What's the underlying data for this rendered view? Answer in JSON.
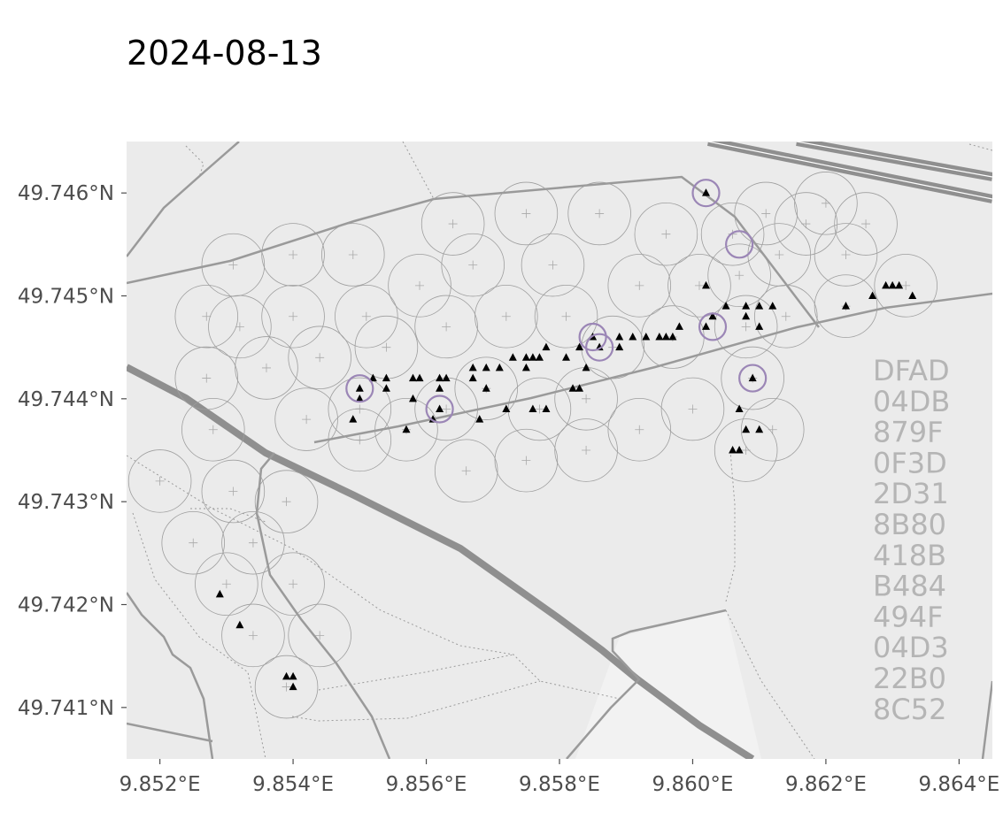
{
  "title": "2024-08-13",
  "map": {
    "x_range": [
      9.8515,
      9.8645
    ],
    "y_range": [
      49.7405,
      49.7465
    ],
    "background_color": "#ebebeb",
    "x_ticks": [
      {
        "value": 9.852,
        "label": "9.852°E"
      },
      {
        "value": 9.854,
        "label": "9.854°E"
      },
      {
        "value": 9.856,
        "label": "9.856°E"
      },
      {
        "value": 9.858,
        "label": "9.858°E"
      },
      {
        "value": 9.86,
        "label": "9.860°E"
      },
      {
        "value": 9.862,
        "label": "9.862°E"
      },
      {
        "value": 9.864,
        "label": "9.864°E"
      }
    ],
    "y_ticks": [
      {
        "value": 49.746,
        "label": "49.746°N"
      },
      {
        "value": 49.745,
        "label": "49.745°N"
      },
      {
        "value": 49.744,
        "label": "49.744°N"
      },
      {
        "value": 49.743,
        "label": "49.743°N"
      },
      {
        "value": 49.742,
        "label": "49.742°N"
      },
      {
        "value": 49.741,
        "label": "49.741°N"
      }
    ]
  },
  "side_codes": [
    "DFAD",
    "04DB",
    "879F",
    "0F3D",
    "2D31",
    "8B80",
    "418B",
    "B484",
    "494F",
    "04D3",
    "22B0",
    "8C52"
  ],
  "chart_data": {
    "type": "scatter",
    "coverage_circles": {
      "radius_deg_lon": 0.00047,
      "color": "#9e9e9e",
      "centers": [
        [
          9.8531,
          49.7453
        ],
        [
          9.854,
          49.7454
        ],
        [
          9.8549,
          49.7454
        ],
        [
          9.8564,
          49.7457
        ],
        [
          9.8575,
          49.7458
        ],
        [
          9.8586,
          49.7458
        ],
        [
          9.8596,
          49.7456
        ],
        [
          9.8606,
          49.7456
        ],
        [
          9.8617,
          49.7457
        ],
        [
          9.8626,
          49.7457
        ],
        [
          9.8611,
          49.7458
        ],
        [
          9.862,
          49.7459
        ],
        [
          9.8527,
          49.7448
        ],
        [
          9.8532,
          49.7447
        ],
        [
          9.854,
          49.7448
        ],
        [
          9.8551,
          49.7448
        ],
        [
          9.8559,
          49.7451
        ],
        [
          9.8567,
          49.7453
        ],
        [
          9.8579,
          49.7453
        ],
        [
          9.8592,
          49.7451
        ],
        [
          9.8601,
          49.7451
        ],
        [
          9.8607,
          49.7452
        ],
        [
          9.8613,
          49.7454
        ],
        [
          9.8623,
          49.7454
        ],
        [
          9.8527,
          49.7442
        ],
        [
          9.8536,
          49.7443
        ],
        [
          9.8544,
          49.7444
        ],
        [
          9.8554,
          49.7445
        ],
        [
          9.8563,
          49.7447
        ],
        [
          9.8572,
          49.7448
        ],
        [
          9.8581,
          49.7448
        ],
        [
          9.8588,
          49.7445
        ],
        [
          9.8597,
          49.7446
        ],
        [
          9.8608,
          49.7447
        ],
        [
          9.8614,
          49.7448
        ],
        [
          9.8623,
          49.7449
        ],
        [
          9.8632,
          49.7451
        ],
        [
          9.8528,
          49.7437
        ],
        [
          9.8542,
          49.7438
        ],
        [
          9.855,
          49.7439
        ],
        [
          9.8557,
          49.7437
        ],
        [
          9.8563,
          49.7439
        ],
        [
          9.8569,
          49.7441
        ],
        [
          9.8577,
          49.7439
        ],
        [
          9.8584,
          49.744
        ],
        [
          9.86,
          49.7439
        ],
        [
          9.8609,
          49.7442
        ],
        [
          9.8612,
          49.7437
        ],
        [
          9.852,
          49.7432
        ],
        [
          9.8531,
          49.7431
        ],
        [
          9.8539,
          49.743
        ],
        [
          9.855,
          49.7436
        ],
        [
          9.8566,
          49.7433
        ],
        [
          9.8575,
          49.7434
        ],
        [
          9.8584,
          49.7435
        ],
        [
          9.8592,
          49.7437
        ],
        [
          9.8608,
          49.7435
        ],
        [
          9.8525,
          49.7426
        ],
        [
          9.8534,
          49.7426
        ],
        [
          9.854,
          49.7422
        ],
        [
          9.853,
          49.7422
        ],
        [
          9.8534,
          49.7417
        ],
        [
          9.8544,
          49.7417
        ],
        [
          9.8539,
          49.7412
        ]
      ]
    },
    "detections": {
      "marker": "triangle",
      "color": "#000000",
      "points": [
        [
          9.8529,
          49.7421
        ],
        [
          9.8532,
          49.7418
        ],
        [
          9.8539,
          49.7413
        ],
        [
          9.854,
          49.7413
        ],
        [
          9.854,
          49.7412
        ],
        [
          9.8549,
          49.7438
        ],
        [
          9.855,
          49.744
        ],
        [
          9.855,
          49.7441
        ],
        [
          9.8552,
          49.7442
        ],
        [
          9.8554,
          49.7442
        ],
        [
          9.8554,
          49.7441
        ],
        [
          9.8557,
          49.7437
        ],
        [
          9.8558,
          49.744
        ],
        [
          9.8558,
          49.7442
        ],
        [
          9.8559,
          49.7442
        ],
        [
          9.8561,
          49.7438
        ],
        [
          9.8562,
          49.7439
        ],
        [
          9.8562,
          49.7441
        ],
        [
          9.8562,
          49.7442
        ],
        [
          9.8563,
          49.7442
        ],
        [
          9.8567,
          49.7442
        ],
        [
          9.8567,
          49.7443
        ],
        [
          9.8568,
          49.7438
        ],
        [
          9.8569,
          49.7441
        ],
        [
          9.8569,
          49.7443
        ],
        [
          9.8571,
          49.7443
        ],
        [
          9.8572,
          49.7439
        ],
        [
          9.8573,
          49.7444
        ],
        [
          9.8575,
          49.7443
        ],
        [
          9.8575,
          49.7444
        ],
        [
          9.8576,
          49.7444
        ],
        [
          9.8576,
          49.7439
        ],
        [
          9.8577,
          49.7444
        ],
        [
          9.8578,
          49.7439
        ],
        [
          9.8578,
          49.7445
        ],
        [
          9.8581,
          49.7444
        ],
        [
          9.8582,
          49.7441
        ],
        [
          9.8583,
          49.7445
        ],
        [
          9.8583,
          49.7441
        ],
        [
          9.8584,
          49.7443
        ],
        [
          9.8585,
          49.7446
        ],
        [
          9.8586,
          49.7445
        ],
        [
          9.8589,
          49.7445
        ],
        [
          9.8589,
          49.7446
        ],
        [
          9.8591,
          49.7446
        ],
        [
          9.8593,
          49.7446
        ],
        [
          9.8595,
          49.7446
        ],
        [
          9.8596,
          49.7446
        ],
        [
          9.8597,
          49.7446
        ],
        [
          9.8598,
          49.7447
        ],
        [
          9.8602,
          49.7451
        ],
        [
          9.8602,
          49.7447
        ],
        [
          9.8603,
          49.7448
        ],
        [
          9.8605,
          49.7449
        ],
        [
          9.8606,
          49.7435
        ],
        [
          9.8607,
          49.7435
        ],
        [
          9.8607,
          49.7439
        ],
        [
          9.8608,
          49.7437
        ],
        [
          9.8608,
          49.7448
        ],
        [
          9.8608,
          49.7449
        ],
        [
          9.8609,
          49.7442
        ],
        [
          9.861,
          49.7437
        ],
        [
          9.861,
          49.7447
        ],
        [
          9.861,
          49.7449
        ],
        [
          9.8612,
          49.7449
        ],
        [
          9.8602,
          49.746
        ],
        [
          9.8623,
          49.7449
        ],
        [
          9.8627,
          49.745
        ],
        [
          9.8629,
          49.7451
        ],
        [
          9.863,
          49.7451
        ],
        [
          9.8631,
          49.7451
        ],
        [
          9.8633,
          49.745
        ]
      ]
    },
    "highlighted": {
      "marker": "circle",
      "color": "#9b86b6",
      "points": [
        [
          9.855,
          49.7441
        ],
        [
          9.8562,
          49.7439
        ],
        [
          9.8585,
          49.7446
        ],
        [
          9.8586,
          49.7445
        ],
        [
          9.8602,
          49.746
        ],
        [
          9.8607,
          49.7455
        ],
        [
          9.8603,
          49.7447
        ],
        [
          9.8609,
          49.7442
        ]
      ]
    }
  }
}
